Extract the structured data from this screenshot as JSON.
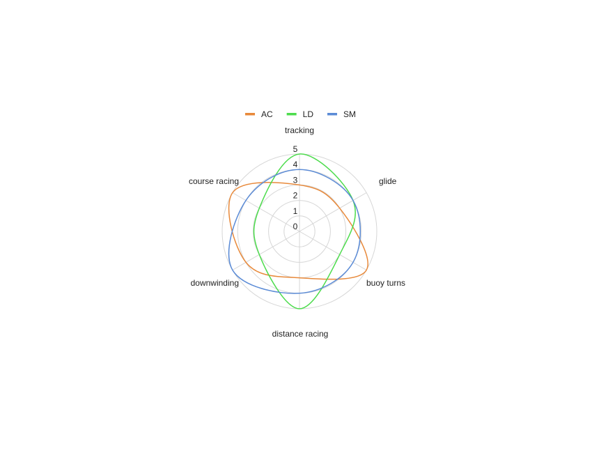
{
  "chart_data": {
    "type": "radar",
    "categories": [
      "tracking",
      "glide",
      "buoy turns",
      "distance racing",
      "downwinding",
      "course racing"
    ],
    "series": [
      {
        "name": "AC",
        "color": "#e8893a",
        "values": [
          3,
          3,
          5,
          3,
          4,
          5
        ]
      },
      {
        "name": "LD",
        "color": "#4ddc4d",
        "values": [
          5,
          4,
          3,
          5,
          3,
          3
        ]
      },
      {
        "name": "SM",
        "color": "#5b8bd6",
        "values": [
          4,
          4,
          4,
          4,
          5,
          4
        ]
      }
    ],
    "rlim": [
      0,
      5
    ],
    "ticks": [
      "0",
      "1",
      "2",
      "3",
      "4",
      "5"
    ],
    "grid": true,
    "curve": "smooth",
    "legend": "top"
  }
}
